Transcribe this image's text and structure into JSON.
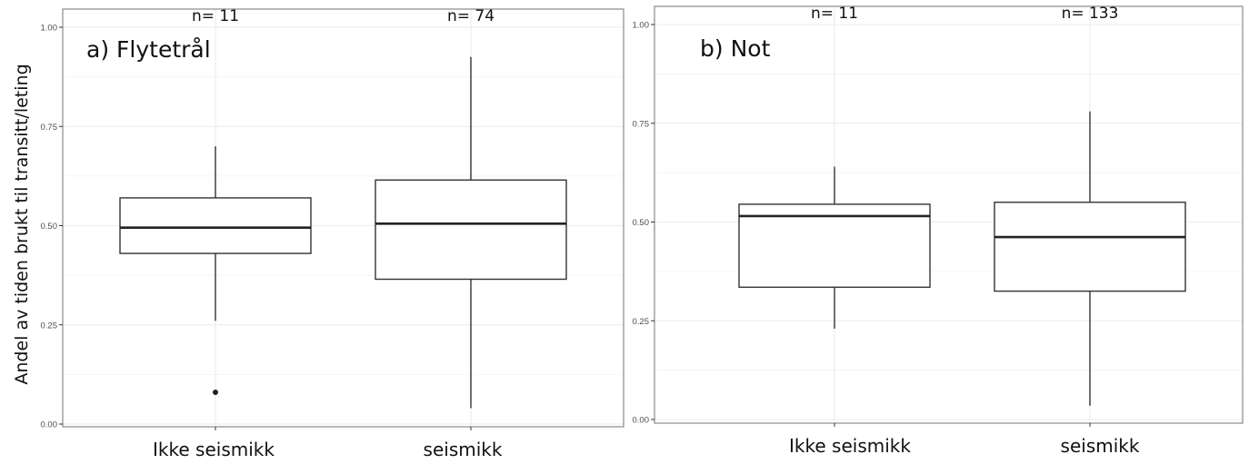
{
  "chart_data": [
    {
      "type": "boxplot",
      "title": "a) Flytetrål",
      "xlabel": "",
      "ylabel": "Andel av tiden brukt til transitt/leting",
      "ylim": [
        0,
        1
      ],
      "yticks": [
        0.0,
        0.25,
        0.5,
        0.75,
        1.0
      ],
      "ytick_labels": [
        "0.00",
        "0.25",
        "0.50",
        "0.75",
        "1.00"
      ],
      "grid": true,
      "categories": [
        "Ikke seismikk",
        "seismikk"
      ],
      "n_labels": [
        "n= 11",
        "n= 74"
      ],
      "boxes": [
        {
          "category": "Ikke seismikk",
          "n": 11,
          "whisker_low": 0.26,
          "q1": 0.43,
          "median": 0.495,
          "q3": 0.57,
          "whisker_high": 0.7,
          "outliers": [
            0.08
          ]
        },
        {
          "category": "seismikk",
          "n": 74,
          "whisker_low": 0.04,
          "q1": 0.365,
          "median": 0.505,
          "q3": 0.615,
          "whisker_high": 0.925,
          "outliers": []
        }
      ]
    },
    {
      "type": "boxplot",
      "title": "b) Not",
      "xlabel": "",
      "ylabel": "",
      "ylim": [
        0,
        1
      ],
      "yticks": [
        0.0,
        0.25,
        0.5,
        0.75,
        1.0
      ],
      "ytick_labels": [
        "0.00",
        "0.25",
        "0.50",
        "0.75",
        "1.00"
      ],
      "grid": true,
      "categories": [
        "Ikke seismikk",
        "seismikk"
      ],
      "n_labels": [
        "n= 11",
        "n= 133"
      ],
      "boxes": [
        {
          "category": "Ikke seismikk",
          "n": 11,
          "whisker_low": 0.23,
          "q1": 0.335,
          "median": 0.515,
          "q3": 0.545,
          "whisker_high": 0.64,
          "outliers": []
        },
        {
          "category": "seismikk",
          "n": 133,
          "whisker_low": 0.035,
          "q1": 0.325,
          "median": 0.462,
          "q3": 0.55,
          "whisker_high": 0.78,
          "outliers": []
        }
      ]
    }
  ],
  "figure": {
    "y_axis_title": "Andel av tiden brukt til transitt/leting",
    "panels": [
      {
        "title": "a) Flytetrål",
        "x_labels": [
          "Ikke seismikk",
          "seismikk"
        ],
        "n_labels": [
          "n= 11",
          "n= 74"
        ],
        "ytick_labels": [
          "0.00",
          "0.25",
          "0.50",
          "0.75",
          "1.00"
        ]
      },
      {
        "title": "b) Not",
        "x_labels": [
          "Ikke seismikk",
          "seismikk"
        ],
        "n_labels": [
          "n= 11",
          "n= 133"
        ],
        "ytick_labels": [
          "0.00",
          "0.25",
          "0.50",
          "0.75",
          "1.00"
        ]
      }
    ]
  },
  "colors": {
    "box_stroke": "#333333",
    "median": "#222222",
    "grid": "#ebebeb",
    "panel_border": "#8a8a8a",
    "background": "#ffffff"
  }
}
